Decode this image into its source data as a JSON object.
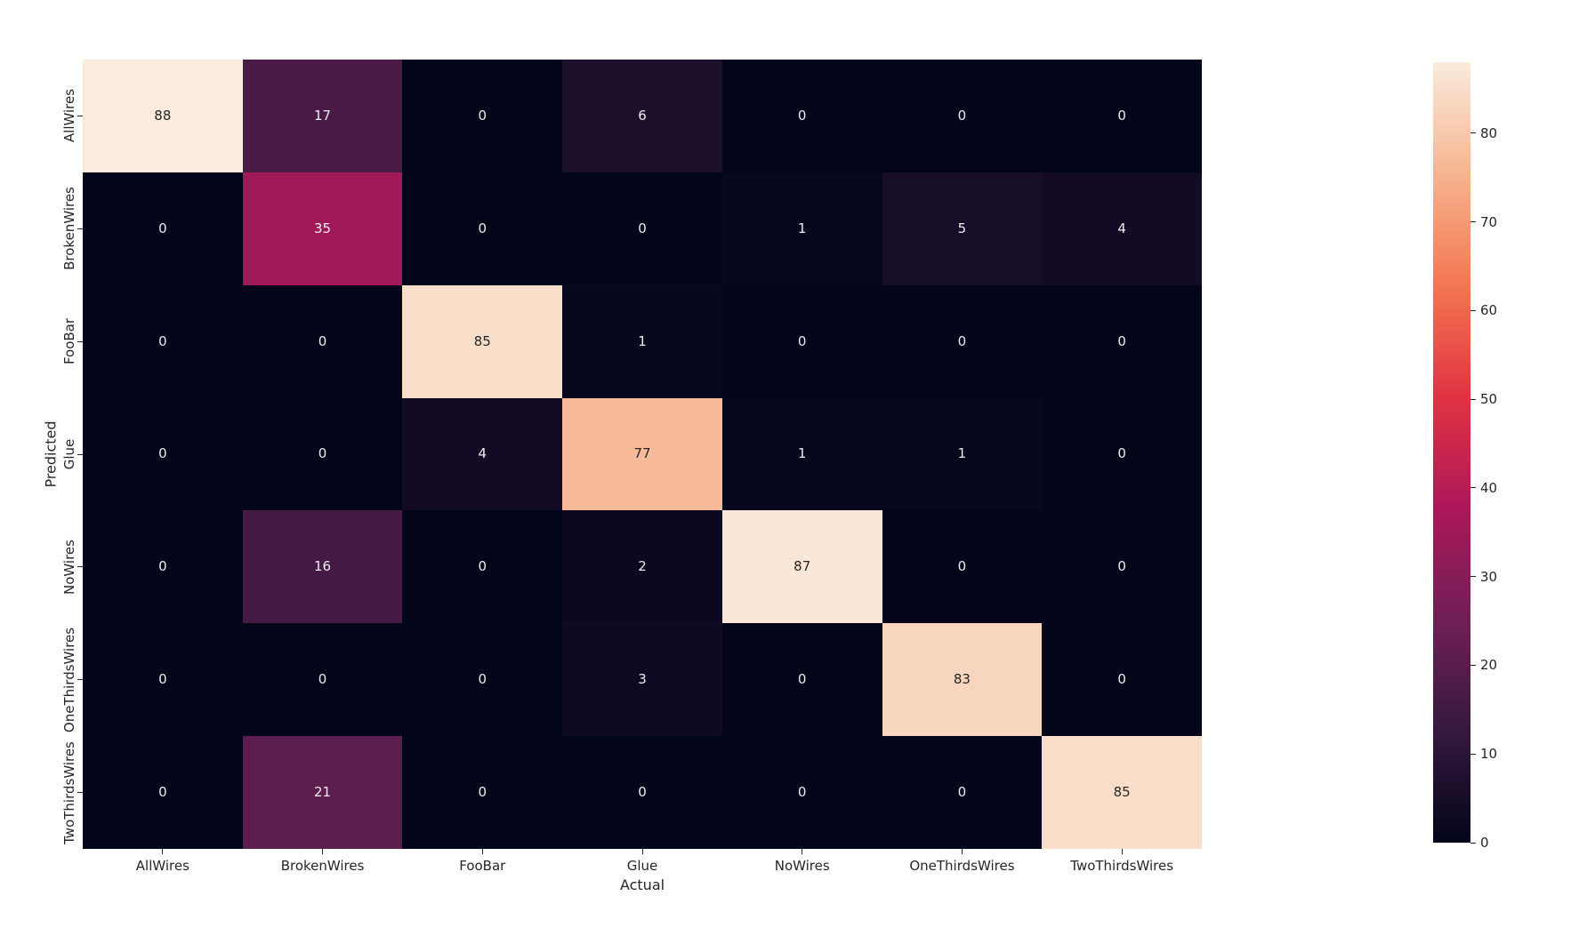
{
  "chart_data": {
    "type": "heatmap",
    "title": "",
    "xlabel": "Actual",
    "ylabel": "Predicted",
    "categories_x": [
      "AllWires",
      "BrokenWires",
      "FooBar",
      "Glue",
      "NoWires",
      "OneThirdsWires",
      "TwoThirdsWires"
    ],
    "categories_y": [
      "AllWires",
      "BrokenWires",
      "FooBar",
      "Glue",
      "NoWires",
      "OneThirdsWires",
      "TwoThirdsWires"
    ],
    "values": [
      [
        88,
        17,
        0,
        6,
        0,
        0,
        0
      ],
      [
        0,
        35,
        0,
        0,
        1,
        5,
        4
      ],
      [
        0,
        0,
        85,
        1,
        0,
        0,
        0
      ],
      [
        0,
        0,
        4,
        77,
        1,
        1,
        0
      ],
      [
        0,
        16,
        0,
        2,
        87,
        0,
        0
      ],
      [
        0,
        0,
        0,
        3,
        0,
        83,
        0
      ],
      [
        0,
        21,
        0,
        0,
        0,
        0,
        85
      ]
    ],
    "vmin": 0,
    "vmax": 88,
    "annotations": true,
    "grid": false,
    "colormap": "rocket",
    "colormap_stops": [
      {
        "t": 0.0,
        "color": "#03051A"
      },
      {
        "t": 0.143,
        "color": "#35193E"
      },
      {
        "t": 0.286,
        "color": "#701F57"
      },
      {
        "t": 0.429,
        "color": "#AD1759"
      },
      {
        "t": 0.571,
        "color": "#E13342"
      },
      {
        "t": 0.714,
        "color": "#F37651"
      },
      {
        "t": 0.857,
        "color": "#F6B48F"
      },
      {
        "t": 1.0,
        "color": "#FAEBDD"
      }
    ],
    "colorbar": {
      "position": "right",
      "ticks": [
        0,
        10,
        20,
        30,
        40,
        50,
        60,
        70,
        80
      ]
    },
    "annotation_color_dark": "#262626",
    "annotation_color_light": "#EDEDED",
    "tick_color": "#262626",
    "background": "#FFFFFF"
  }
}
